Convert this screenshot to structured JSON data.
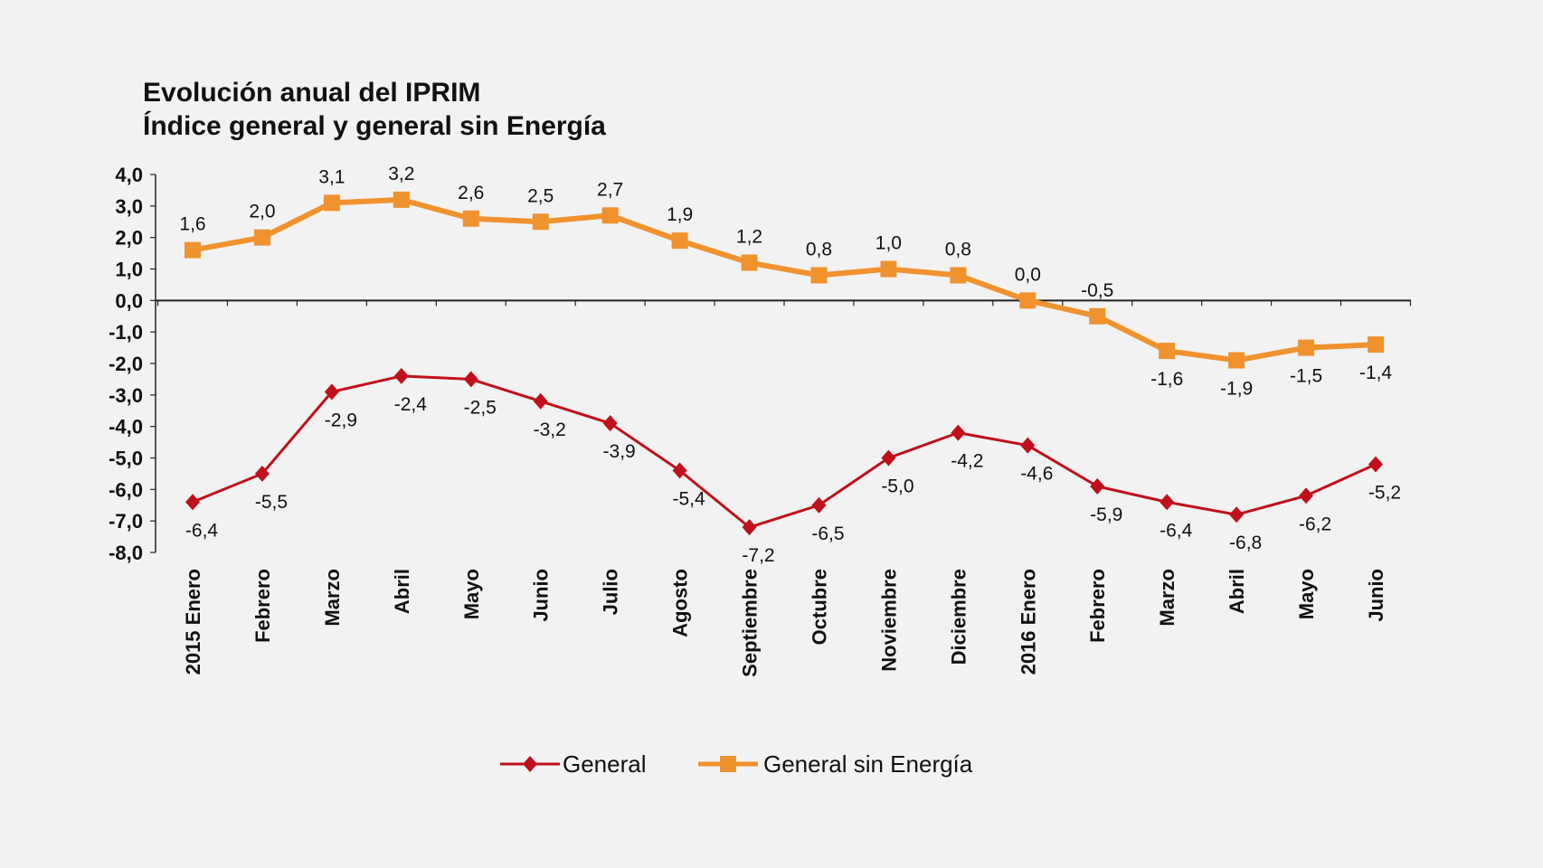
{
  "chart_data": {
    "type": "line",
    "title": "Evolución anual del IPRIM",
    "subtitle": "Índice general y general sin Energía",
    "categories": [
      "2015 Enero",
      "Febrero",
      "Marzo",
      "Abril",
      "Mayo",
      "Junio",
      "Julio",
      "Agosto",
      "Septiembre",
      "Octubre",
      "Noviembre",
      "Diciembre",
      "2016 Enero",
      "Febrero",
      "Marzo",
      "Abril",
      "Mayo",
      "Junio"
    ],
    "series": [
      {
        "name": "General",
        "color": "#c0101a",
        "marker": "diamond",
        "values": [
          -6.4,
          -5.5,
          -2.9,
          -2.4,
          -2.5,
          -3.2,
          -3.9,
          -5.4,
          -7.2,
          -6.5,
          -5.0,
          -4.2,
          -4.6,
          -5.9,
          -6.4,
          -6.8,
          -6.2,
          -5.2
        ]
      },
      {
        "name": "General sin Energía",
        "color": "#f0922e",
        "marker": "square",
        "values": [
          1.6,
          2.0,
          3.1,
          3.2,
          2.6,
          2.5,
          2.7,
          1.9,
          1.2,
          0.8,
          1.0,
          0.8,
          0.0,
          -0.5,
          -1.6,
          -1.9,
          -1.5,
          -1.4
        ]
      }
    ],
    "ylim": [
      -8,
      4
    ],
    "yticks": [
      4,
      3,
      2,
      1,
      0,
      -1,
      -2,
      -3,
      -4,
      -5,
      -6,
      -7,
      -8
    ],
    "decimal_separator": ",",
    "grid": false,
    "legend": "bottom",
    "xlabel": "",
    "ylabel": ""
  }
}
